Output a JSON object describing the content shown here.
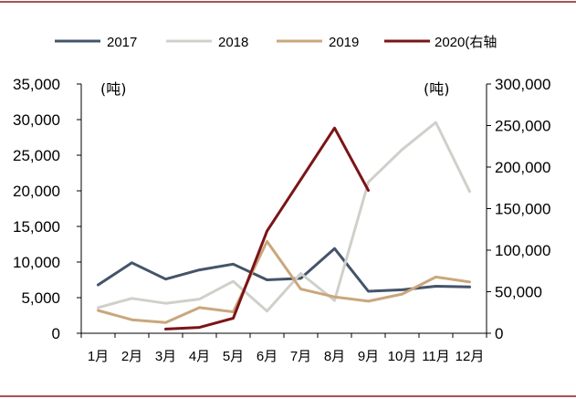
{
  "chart_data": {
    "type": "line",
    "categories": [
      "1月",
      "2月",
      "3月",
      "4月",
      "5月",
      "6月",
      "7月",
      "8月",
      "9月",
      "10月",
      "11月",
      "12月"
    ],
    "left_axis": {
      "unit": "(吨)",
      "ylim": [
        0,
        35000
      ],
      "ticks": [
        "0",
        "5,000",
        "10,000",
        "15,000",
        "20,000",
        "25,000",
        "30,000",
        "35,000"
      ],
      "tick_values": [
        0,
        5000,
        10000,
        15000,
        20000,
        25000,
        30000,
        35000
      ]
    },
    "right_axis": {
      "unit": "(吨)",
      "ylim": [
        0,
        300000
      ],
      "ticks": [
        "0",
        "50,000",
        "100,000",
        "150,000",
        "200,000",
        "250,000",
        "300,000"
      ],
      "tick_values": [
        0,
        50000,
        100000,
        150000,
        200000,
        250000,
        300000
      ]
    },
    "series": [
      {
        "name": "2017",
        "color": "#44546a",
        "axis": "left",
        "x": [
          1,
          2,
          3,
          4,
          5,
          6,
          7,
          8,
          9,
          10,
          11,
          12
        ],
        "values": [
          6800,
          9900,
          7600,
          8900,
          9700,
          7500,
          7700,
          11900,
          5900,
          6100,
          6600,
          6500
        ]
      },
      {
        "name": "2018",
        "color": "#d0d0cb",
        "axis": "left",
        "x": [
          1,
          2,
          3,
          4,
          5,
          6,
          7,
          8,
          9,
          10,
          11,
          12
        ],
        "values": [
          3600,
          4900,
          4200,
          4800,
          7300,
          3100,
          8400,
          4600,
          21200,
          25800,
          29600,
          19900
        ]
      },
      {
        "name": "2019",
        "color": "#c9a77c",
        "axis": "left",
        "x": [
          1,
          2,
          3,
          4,
          5,
          6,
          7,
          8,
          9,
          10,
          11,
          12
        ],
        "values": [
          3200,
          1900,
          1500,
          3600,
          3000,
          12900,
          6200,
          5100,
          4500,
          5500,
          7900,
          7200
        ]
      },
      {
        "name": "2020(右轴",
        "color": "#7b1416",
        "axis": "right",
        "x": [
          3,
          4,
          5,
          6,
          7,
          8,
          9
        ],
        "values": [
          5000,
          7000,
          18000,
          123000,
          185000,
          247000,
          172000
        ]
      }
    ]
  }
}
